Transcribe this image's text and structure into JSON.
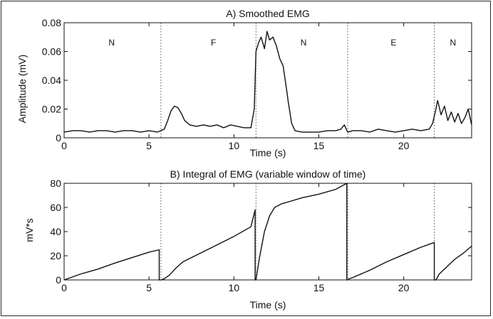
{
  "chart_data": [
    {
      "type": "line",
      "title": "A) Smoothed EMG",
      "xlabel": "Time (s)",
      "ylabel": "Amplitude (mV)",
      "xlim": [
        0,
        24
      ],
      "ylim": [
        0,
        0.08
      ],
      "x_ticks": [
        0,
        5,
        10,
        15,
        20
      ],
      "x_tick_labels": [
        "0",
        "5",
        "10",
        "15",
        "20"
      ],
      "y_ticks": [
        0,
        0.02,
        0.04,
        0.06,
        0.08
      ],
      "y_tick_labels": [
        "0",
        "0.02",
        "0.04",
        "0.06",
        "0.08"
      ],
      "grid": false,
      "phase_boundaries": [
        5.7,
        11.3,
        16.7,
        21.8
      ],
      "phase_labels": [
        {
          "x": 2.8,
          "text": "N"
        },
        {
          "x": 8.8,
          "text": "F"
        },
        {
          "x": 14.1,
          "text": "N"
        },
        {
          "x": 19.4,
          "text": "E"
        },
        {
          "x": 22.9,
          "text": "N"
        }
      ],
      "series": [
        {
          "x": [
            0,
            0.5,
            1,
            1.5,
            2,
            2.5,
            3,
            3.5,
            4,
            4.5,
            5,
            5.5,
            5.9,
            6.1,
            6.3,
            6.5,
            6.7,
            6.9,
            7.1,
            7.4,
            7.8,
            8.2,
            8.6,
            9,
            9.4,
            9.8,
            10.2,
            10.6,
            11,
            11.2,
            11.3,
            11.45,
            11.6,
            11.8,
            11.95,
            12.1,
            12.3,
            12.5,
            12.7,
            12.9,
            13.05,
            13.2,
            13.4,
            13.6,
            14,
            14.5,
            15,
            15.5,
            16,
            16.3,
            16.5,
            16.7,
            17,
            17.5,
            18,
            18.5,
            19,
            19.5,
            20,
            20.5,
            21,
            21.5,
            21.7,
            21.9,
            22,
            22.2,
            22.4,
            22.6,
            22.8,
            23,
            23.2,
            23.4,
            23.6,
            23.8,
            24
          ],
          "y": [
            0.004,
            0.005,
            0.005,
            0.004,
            0.005,
            0.005,
            0.004,
            0.005,
            0.005,
            0.004,
            0.005,
            0.004,
            0.006,
            0.012,
            0.019,
            0.022,
            0.021,
            0.017,
            0.012,
            0.009,
            0.008,
            0.009,
            0.008,
            0.009,
            0.007,
            0.009,
            0.008,
            0.007,
            0.007,
            0.02,
            0.06,
            0.066,
            0.07,
            0.062,
            0.074,
            0.068,
            0.07,
            0.064,
            0.055,
            0.05,
            0.038,
            0.025,
            0.01,
            0.005,
            0.004,
            0.004,
            0.004,
            0.005,
            0.005,
            0.006,
            0.009,
            0.004,
            0.005,
            0.005,
            0.004,
            0.006,
            0.005,
            0.004,
            0.005,
            0.006,
            0.005,
            0.006,
            0.01,
            0.02,
            0.026,
            0.016,
            0.022,
            0.012,
            0.018,
            0.011,
            0.017,
            0.01,
            0.014,
            0.02,
            0.009
          ]
        }
      ]
    },
    {
      "type": "line",
      "title": "B) Integral of EMG (variable window of time)",
      "xlabel": "Time (s)",
      "ylabel": "mV*s",
      "xlim": [
        0,
        24
      ],
      "ylim": [
        0,
        80
      ],
      "x_ticks": [
        0,
        5,
        10,
        15,
        20
      ],
      "x_tick_labels": [
        "0",
        "5",
        "10",
        "15",
        "20"
      ],
      "y_ticks": [
        0,
        20,
        40,
        60,
        80
      ],
      "y_tick_labels": [
        "0",
        "20",
        "40",
        "60",
        "80"
      ],
      "grid": false,
      "phase_boundaries": [
        5.7,
        11.3,
        16.7,
        21.8
      ],
      "series": [
        {
          "x": [
            0,
            1,
            2,
            3,
            4,
            5,
            5.6,
            5.6,
            5.7,
            5.9,
            6.2,
            6.6,
            7,
            8,
            9,
            10,
            11,
            11.25,
            11.25,
            11.3,
            11.5,
            11.8,
            12.1,
            12.4,
            12.8,
            13.3,
            14,
            15,
            16,
            16.65,
            16.65,
            16.7,
            16.8,
            17,
            18,
            19,
            20,
            21,
            21.8,
            21.8,
            21.9,
            22.1,
            22.4,
            23,
            23.5,
            24
          ],
          "y": [
            0,
            5,
            9,
            14,
            18.5,
            23,
            25,
            0,
            0,
            1,
            4,
            10,
            15,
            22,
            29,
            36,
            44,
            58,
            0,
            0,
            18,
            40,
            53,
            60,
            63,
            65,
            68,
            71,
            75,
            80,
            0,
            0,
            1,
            2,
            8,
            15,
            21,
            27,
            31,
            0,
            0,
            5,
            9,
            17,
            22,
            28
          ]
        }
      ]
    }
  ]
}
